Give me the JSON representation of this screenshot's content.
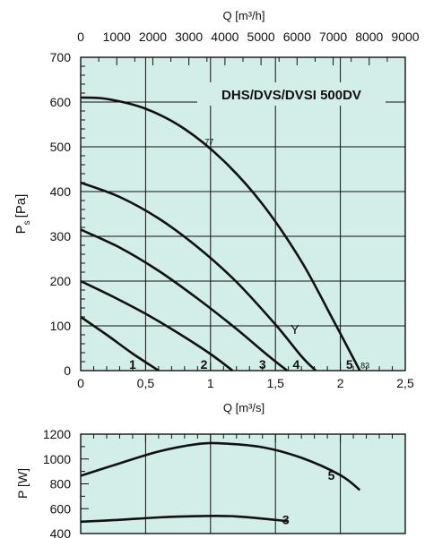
{
  "chart_data": [
    {
      "type": "line",
      "title": "DHS/DVS/DVSI 500DV",
      "xlabel": "Q [m³/s]",
      "x2label": "Q [m³/h]",
      "ylabel": "P",
      "ylabel_sub": "s",
      "ylabel_unit": "[Pa]",
      "xlim": [
        0,
        2.5
      ],
      "x2lim": [
        0,
        9000
      ],
      "ylim": [
        0,
        700
      ],
      "x_ticks": [
        0,
        0.5,
        1,
        1.5,
        2,
        2.5
      ],
      "x_tick_labels": [
        "0",
        "0,5",
        "1",
        "1,5",
        "2",
        "2,5"
      ],
      "x2_ticks": [
        0,
        1000,
        2000,
        3000,
        4000,
        5000,
        6000,
        7000,
        8000,
        9000
      ],
      "x2_tick_labels": [
        "0",
        "1000",
        "2000",
        "3000",
        "4000",
        "5000",
        "6000",
        "7000",
        "8000",
        "9000"
      ],
      "y_ticks": [
        0,
        100,
        200,
        300,
        400,
        500,
        600,
        700
      ],
      "y_tick_labels": [
        "0",
        "100",
        "200",
        "300",
        "400",
        "500",
        "600",
        "700"
      ],
      "grid": true,
      "series": [
        {
          "name": "1",
          "x": [
            0,
            0.2,
            0.4,
            0.6
          ],
          "y": [
            120,
            80,
            38,
            0
          ]
        },
        {
          "name": "2",
          "x": [
            0,
            0.25,
            0.5,
            0.75,
            1.0,
            1.17
          ],
          "y": [
            200,
            165,
            127,
            84,
            37,
            0
          ]
        },
        {
          "name": "3",
          "x": [
            0,
            0.3,
            0.6,
            0.9,
            1.2,
            1.45,
            1.59
          ],
          "y": [
            315,
            275,
            223,
            161,
            93,
            32,
            0
          ]
        },
        {
          "name": "4",
          "x": [
            0,
            0.3,
            0.6,
            0.9,
            1.2,
            1.5,
            1.7,
            1.81
          ],
          "y": [
            420,
            388,
            340,
            276,
            198,
            103,
            32,
            0
          ]
        },
        {
          "name": "5",
          "x": [
            0,
            0.2,
            0.5,
            0.8,
            1.1,
            1.4,
            1.7,
            1.95,
            2.15
          ],
          "y": [
            610,
            607,
            585,
            540,
            469,
            372,
            244,
            110,
            0
          ]
        }
      ],
      "curve_labels": [
        {
          "text": "1",
          "x": 0.4,
          "y": 0
        },
        {
          "text": "2",
          "x": 0.95,
          "y": 0
        },
        {
          "text": "3",
          "x": 1.4,
          "y": 0
        },
        {
          "text": "4",
          "x": 1.66,
          "y": 0
        },
        {
          "text": "5",
          "x": 2.07,
          "y": 0
        }
      ],
      "annotations": [
        {
          "text": "77",
          "x": 0.99,
          "y": 505
        },
        {
          "text": "Y",
          "x": 1.65,
          "y": 82
        },
        {
          "text": "83",
          "x": 2.19,
          "y": 5
        }
      ]
    },
    {
      "type": "line",
      "xlabel": "",
      "ylabel": "P [W]",
      "xlim": [
        0,
        2.5
      ],
      "ylim": [
        400,
        1200
      ],
      "y_ticks": [
        400,
        600,
        800,
        1000,
        1200
      ],
      "y_tick_labels": [
        "400",
        "600",
        "800",
        "1000",
        "1200"
      ],
      "x_ticks": [
        0,
        0.5,
        1,
        1.5,
        2,
        2.5
      ],
      "grid": true,
      "series": [
        {
          "name": "5",
          "x": [
            0,
            0.3,
            0.6,
            0.9,
            1.1,
            1.4,
            1.7,
            2.0,
            2.15
          ],
          "y": [
            865,
            965,
            1060,
            1120,
            1125,
            1095,
            1010,
            870,
            750
          ]
        },
        {
          "name": "3",
          "x": [
            0,
            0.3,
            0.6,
            0.9,
            1.2,
            1.59
          ],
          "y": [
            495,
            510,
            530,
            540,
            538,
            500
          ]
        }
      ],
      "curve_labels": [
        {
          "text": "5",
          "x": 1.93,
          "y": 870
        },
        {
          "text": "3",
          "x": 1.58,
          "y": 510
        }
      ]
    }
  ]
}
